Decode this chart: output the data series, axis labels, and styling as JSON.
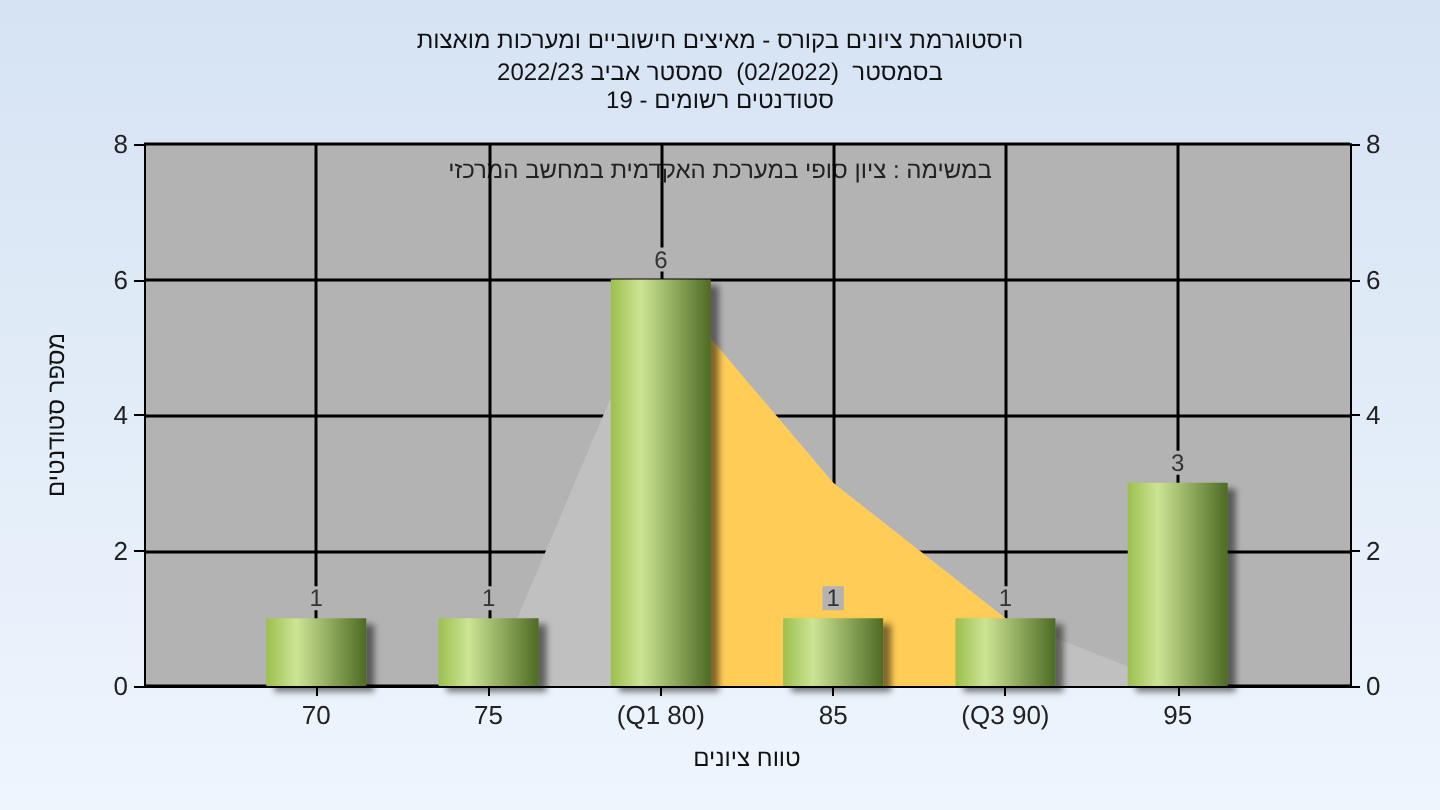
{
  "chart_data": {
    "type": "bar",
    "title": "היסטוגרמת ציונים בקורס - מאיצים חישוביים ומערכות מואצות",
    "subtitle": "בסמסטר  (02/2022)  סמסטר אביב 2022/23\nסטודנטים רשומים - 19",
    "xlabel": "טווח ציונים",
    "ylabel": "מספר סטודנטים",
    "annotations": [
      "במשימה : ציון סופי במערכת האקדמית במחשב המרכזי"
    ],
    "x": [
      70,
      75,
      80,
      85,
      90,
      95
    ],
    "series": [
      {
        "type": "area",
        "color": "#c0c0c0",
        "x": [
          70,
          75,
          80,
          85,
          90,
          95
        ],
        "values": [
          0,
          0,
          6,
          3,
          1,
          0
        ]
      },
      {
        "type": "area",
        "color": "#ffcc55",
        "x": [
          80,
          85,
          90
        ],
        "values": [
          6,
          3,
          1
        ]
      },
      {
        "color": "#9cbf4e",
        "values": [
          1,
          1,
          6,
          1,
          1,
          3
        ],
        "value_labels": [
          "1",
          "1",
          "6",
          "1",
          "1",
          "3"
        ]
      }
    ],
    "xlim": [
      65,
      100
    ],
    "xticks": [
      70,
      75,
      {
        "value": 80,
        "label": "(Q1 80)"
      },
      85,
      {
        "value": 90,
        "label": "(Q3 90)"
      },
      95
    ],
    "ylim": [
      0,
      8
    ],
    "yticks": [
      0,
      2,
      4,
      6,
      8
    ],
    "y2lim": [
      0,
      8
    ],
    "y2ticks": [
      0,
      2,
      4,
      6,
      8
    ],
    "grid": true
  }
}
